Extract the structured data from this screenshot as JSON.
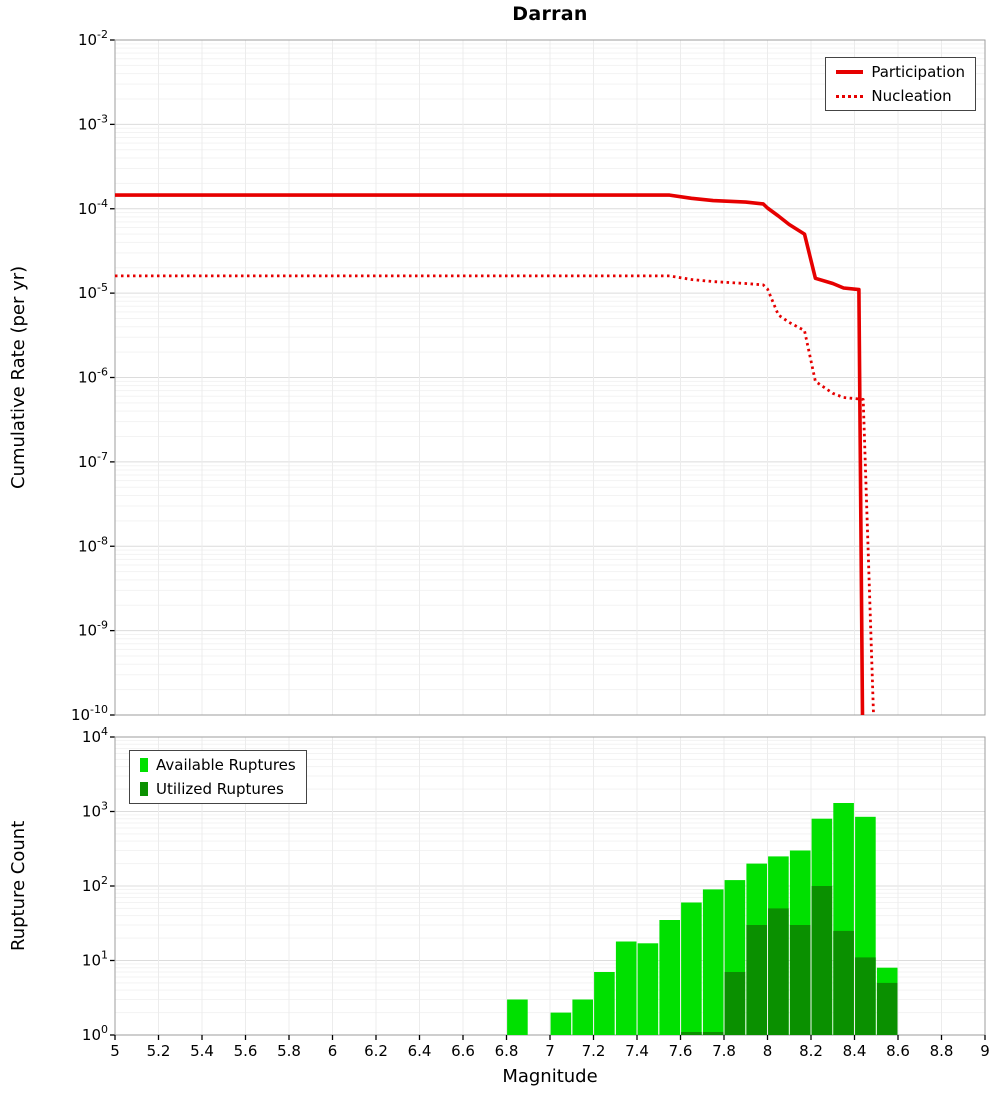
{
  "figure": {
    "title": "Darran",
    "background": "#ffffff",
    "accent_red": "#e60000",
    "bright_green": "#00e000",
    "dark_green": "#0a9000"
  },
  "chart_data": [
    {
      "type": "line",
      "title": "Darran",
      "xlabel": "Magnitude",
      "ylabel": "Cumulative Rate (per yr)",
      "xlim": [
        5,
        9
      ],
      "ylim_log10": [
        -10,
        -2
      ],
      "y_tick_exponents": [
        -2,
        -3,
        -4,
        -5,
        -6,
        -7,
        -8,
        -9,
        -10
      ],
      "grid": true,
      "legend_position": "top-right",
      "series": [
        {
          "name": "Participation",
          "style": "solid",
          "color": "#e60000",
          "points": [
            [
              5.0,
              0.000145
            ],
            [
              7.55,
              0.000145
            ],
            [
              7.65,
              0.000133
            ],
            [
              7.75,
              0.000125
            ],
            [
              7.9,
              0.00012
            ],
            [
              7.98,
              0.000114
            ],
            [
              8.0,
              0.000102
            ],
            [
              8.05,
              8.2e-05
            ],
            [
              8.1,
              6.5e-05
            ],
            [
              8.17,
              5e-05
            ],
            [
              8.22,
              1.5e-05
            ],
            [
              8.3,
              1.3e-05
            ],
            [
              8.35,
              1.15e-05
            ],
            [
              8.42,
              1.1e-05
            ],
            [
              8.44,
              1e-11
            ]
          ]
        },
        {
          "name": "Nucleation",
          "style": "dotted",
          "color": "#e60000",
          "points": [
            [
              5.0,
              1.6e-05
            ],
            [
              7.55,
              1.6e-05
            ],
            [
              7.65,
              1.45e-05
            ],
            [
              7.75,
              1.37e-05
            ],
            [
              7.9,
              1.3e-05
            ],
            [
              7.98,
              1.25e-05
            ],
            [
              8.0,
              1.12e-05
            ],
            [
              8.05,
              5.5e-06
            ],
            [
              8.1,
              4.5e-06
            ],
            [
              8.17,
              3.6e-06
            ],
            [
              8.22,
              9e-07
            ],
            [
              8.3,
              6.5e-07
            ],
            [
              8.35,
              5.8e-07
            ],
            [
              8.44,
              5.5e-07
            ],
            [
              8.5,
              1e-11
            ]
          ]
        }
      ]
    },
    {
      "type": "bar",
      "xlabel": "Magnitude",
      "ylabel": "Rupture Count",
      "xlim": [
        5,
        9
      ],
      "ylim_log10": [
        0,
        4
      ],
      "y_tick_exponents": [
        0,
        1,
        2,
        3,
        4
      ],
      "bar_width": 0.1,
      "grid": true,
      "legend_position": "top-left",
      "x_ticks": {
        "values": [
          5,
          5.2,
          5.4,
          5.6,
          5.8,
          6,
          6.2,
          6.4,
          6.6,
          6.8,
          7,
          7.2,
          7.4,
          7.6,
          7.8,
          8,
          8.2,
          8.4,
          8.6,
          8.8,
          9
        ],
        "labels": [
          "5",
          "5.2",
          "5.4",
          "5.6",
          "5.8",
          "6",
          "6.2",
          "6.4",
          "6.6",
          "6.8",
          "7",
          "7.2",
          "7.4",
          "7.6",
          "7.8",
          "8",
          "8.2",
          "8.4",
          "8.6",
          "8.8",
          "9"
        ]
      },
      "series": [
        {
          "name": "Available Ruptures",
          "color": "#00e000",
          "x": [
            6.85,
            7.05,
            7.15,
            7.25,
            7.35,
            7.45,
            7.55,
            7.65,
            7.75,
            7.85,
            7.95,
            8.05,
            8.15,
            8.25,
            8.35,
            8.45,
            8.55
          ],
          "values": [
            3,
            2,
            3,
            7,
            18,
            17,
            35,
            60,
            90,
            120,
            200,
            250,
            300,
            800,
            1300,
            850,
            8
          ]
        },
        {
          "name": "Utilized Ruptures",
          "color": "#0a9000",
          "x": [
            7.65,
            7.75,
            7.85,
            7.95,
            8.05,
            8.15,
            8.25,
            8.35,
            8.45,
            8.55
          ],
          "values": [
            1,
            1,
            7,
            30,
            50,
            30,
            100,
            25,
            11,
            5
          ]
        }
      ]
    }
  ]
}
